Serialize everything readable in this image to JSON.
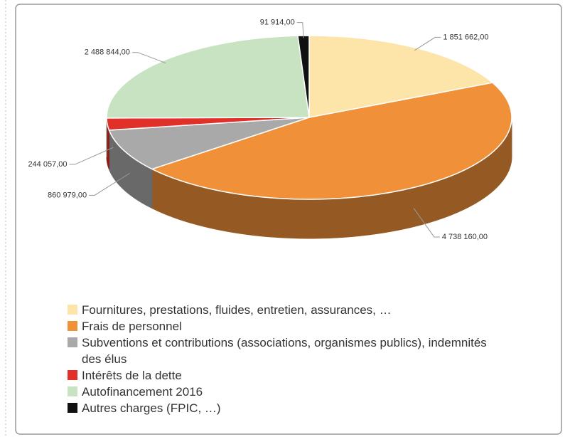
{
  "chart_data": {
    "type": "pie",
    "categories": [
      "Fournitures, prestations, fluides, entretien, assurances, …",
      "Frais de personnel",
      "Subventions et contributions (associations, organismes publics), indemnités des élus",
      "Intérêts de la dette",
      "Autofinancement 2016",
      "Autres charges (FPIC, …)"
    ],
    "values": [
      1851662,
      4738160,
      860979,
      244057,
      2488844,
      91914
    ],
    "value_labels": [
      "1 851 662,00",
      "4 738 160,00",
      "860 979,00",
      "244 057,00",
      "2 488 844,00",
      "91 914,00"
    ],
    "colors": [
      "#fde4a8",
      "#f0913a",
      "#a9a9a9",
      "#e1302a",
      "#c7e3c1",
      "#111111"
    ],
    "legend": "bottom"
  }
}
